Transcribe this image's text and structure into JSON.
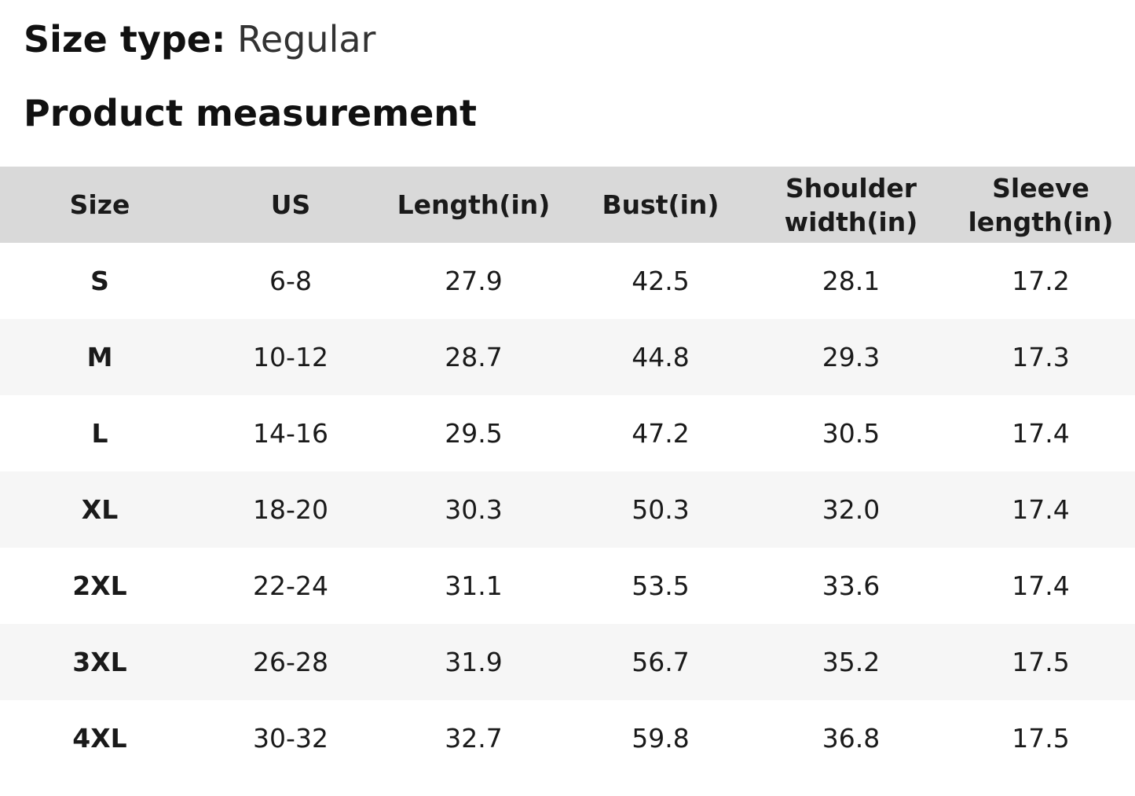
{
  "header": {
    "label": "Size type:",
    "value": "Regular"
  },
  "section_title": "Product measurement",
  "table": {
    "columns": [
      "Size",
      "US",
      "Length(in)",
      "Bust(in)",
      "Shoulder width(in)",
      "Sleeve length(in)"
    ],
    "rows": [
      [
        "S",
        "6-8",
        "27.9",
        "42.5",
        "28.1",
        "17.2"
      ],
      [
        "M",
        "10-12",
        "28.7",
        "44.8",
        "29.3",
        "17.3"
      ],
      [
        "L",
        "14-16",
        "29.5",
        "47.2",
        "30.5",
        "17.4"
      ],
      [
        "XL",
        "18-20",
        "30.3",
        "50.3",
        "32.0",
        "17.4"
      ],
      [
        "2XL",
        "22-24",
        "31.1",
        "53.5",
        "33.6",
        "17.4"
      ],
      [
        "3XL",
        "26-28",
        "31.9",
        "56.7",
        "35.2",
        "17.5"
      ],
      [
        "4XL",
        "30-32",
        "32.7",
        "59.8",
        "36.8",
        "17.5"
      ]
    ]
  }
}
